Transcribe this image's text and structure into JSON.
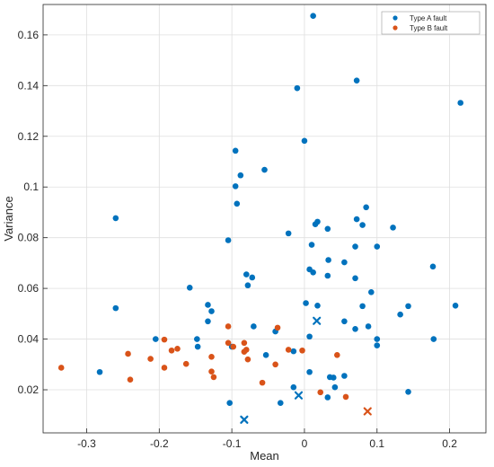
{
  "chart_data": {
    "type": "scatter",
    "xlabel": "Mean",
    "ylabel": "Variance",
    "xlim": [
      -0.36,
      0.25
    ],
    "ylim": [
      0.003,
      0.172
    ],
    "x_ticks": [
      -0.3,
      -0.2,
      -0.1,
      0,
      0.1,
      0.2
    ],
    "x_tick_labels": [
      "-0.3",
      "-0.2",
      "-0.1",
      "0",
      "0.1",
      "0.2"
    ],
    "y_ticks": [
      0.02,
      0.04,
      0.06,
      0.08,
      0.1,
      0.12,
      0.14,
      0.16
    ],
    "y_tick_labels": [
      "0.02",
      "0.04",
      "0.06",
      "0.08",
      "0.1",
      "0.12",
      "0.14",
      "0.16"
    ],
    "grid": true,
    "legend_position": "top-right",
    "series": [
      {
        "name": "Type A fault",
        "color": "#0072BD",
        "marker": "circle",
        "points": [
          [
            0.012,
            0.1675
          ],
          [
            0.072,
            0.142
          ],
          [
            -0.01,
            0.139
          ],
          [
            0.215,
            0.1332
          ],
          [
            0.0,
            0.1182
          ],
          [
            -0.095,
            0.1143
          ],
          [
            -0.055,
            0.1068
          ],
          [
            -0.088,
            0.1046
          ],
          [
            -0.095,
            0.1003
          ],
          [
            -0.093,
            0.0934
          ],
          [
            -0.26,
            0.0877
          ],
          [
            0.085,
            0.092
          ],
          [
            0.018,
            0.0863
          ],
          [
            0.015,
            0.0853
          ],
          [
            0.072,
            0.0873
          ],
          [
            0.08,
            0.085
          ],
          [
            0.122,
            0.084
          ],
          [
            0.032,
            0.0835
          ],
          [
            -0.022,
            0.0817
          ],
          [
            -0.105,
            0.079
          ],
          [
            0.01,
            0.0772
          ],
          [
            0.07,
            0.0765
          ],
          [
            0.1,
            0.0765
          ],
          [
            0.033,
            0.0712
          ],
          [
            0.055,
            0.0703
          ],
          [
            0.177,
            0.0686
          ],
          [
            0.007,
            0.0675
          ],
          [
            0.012,
            0.0663
          ],
          [
            -0.08,
            0.0655
          ],
          [
            -0.072,
            0.0643
          ],
          [
            0.032,
            0.065
          ],
          [
            0.07,
            0.064
          ],
          [
            -0.078,
            0.0612
          ],
          [
            -0.158,
            0.0603
          ],
          [
            0.092,
            0.0585
          ],
          [
            0.08,
            0.053
          ],
          [
            -0.26,
            0.0522
          ],
          [
            0.143,
            0.053
          ],
          [
            0.208,
            0.0532
          ],
          [
            0.002,
            0.0542
          ],
          [
            0.018,
            0.0532
          ],
          [
            -0.133,
            0.0535
          ],
          [
            -0.128,
            0.051
          ],
          [
            0.132,
            0.0497
          ],
          [
            -0.133,
            0.047
          ],
          [
            -0.07,
            0.045
          ],
          [
            0.055,
            0.047
          ],
          [
            0.088,
            0.045
          ],
          [
            0.07,
            0.044
          ],
          [
            -0.04,
            0.043
          ],
          [
            0.007,
            0.041
          ],
          [
            -0.205,
            0.04
          ],
          [
            -0.148,
            0.04
          ],
          [
            0.178,
            0.04
          ],
          [
            0.1,
            0.04
          ],
          [
            -0.147,
            0.037
          ],
          [
            -0.1,
            0.037
          ],
          [
            0.1,
            0.0375
          ],
          [
            -0.015,
            0.0352
          ],
          [
            -0.053,
            0.0337
          ],
          [
            0.035,
            0.025
          ],
          [
            0.04,
            0.0248
          ],
          [
            0.055,
            0.0255
          ],
          [
            0.007,
            0.027
          ],
          [
            -0.282,
            0.027
          ],
          [
            0.042,
            0.021
          ],
          [
            0.032,
            0.017
          ],
          [
            -0.015,
            0.021
          ],
          [
            -0.033,
            0.0148
          ],
          [
            -0.103,
            0.0148
          ],
          [
            0.143,
            0.0192
          ]
        ]
      },
      {
        "name": "Type B fault",
        "color": "#D95319",
        "marker": "circle",
        "points": [
          [
            -0.335,
            0.0287
          ],
          [
            -0.243,
            0.0342
          ],
          [
            -0.24,
            0.024
          ],
          [
            -0.212,
            0.0322
          ],
          [
            -0.193,
            0.0398
          ],
          [
            -0.193,
            0.0287
          ],
          [
            -0.183,
            0.0355
          ],
          [
            -0.175,
            0.0362
          ],
          [
            -0.163,
            0.0302
          ],
          [
            -0.128,
            0.0272
          ],
          [
            -0.128,
            0.033
          ],
          [
            -0.125,
            0.025
          ],
          [
            -0.105,
            0.045
          ],
          [
            -0.105,
            0.0385
          ],
          [
            -0.098,
            0.037
          ],
          [
            -0.083,
            0.0385
          ],
          [
            -0.083,
            0.035
          ],
          [
            -0.08,
            0.0358
          ],
          [
            -0.078,
            0.032
          ],
          [
            -0.058,
            0.0228
          ],
          [
            -0.04,
            0.03
          ],
          [
            -0.037,
            0.0445
          ],
          [
            -0.022,
            0.0358
          ],
          [
            -0.003,
            0.0355
          ],
          [
            0.022,
            0.019
          ],
          [
            0.045,
            0.0337
          ],
          [
            0.057,
            0.0172
          ]
        ]
      },
      {
        "name": "",
        "color": "#0072BD",
        "marker": "x",
        "points": [
          [
            0.017,
            0.0472
          ],
          [
            -0.008,
            0.0178
          ],
          [
            -0.083,
            0.0082
          ]
        ]
      },
      {
        "name": "",
        "color": "#D95319",
        "marker": "x",
        "points": [
          [
            0.087,
            0.0115
          ]
        ]
      }
    ]
  }
}
